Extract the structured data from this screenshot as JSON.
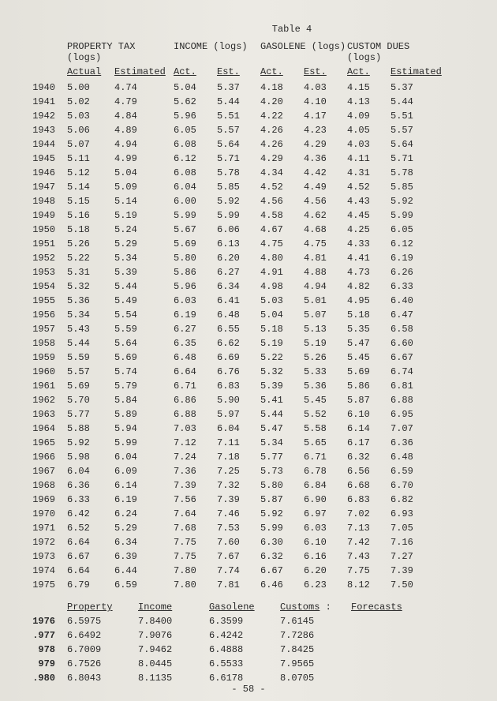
{
  "title": "Table 4",
  "groups": {
    "property": "PROPERTY TAX (logs)",
    "income": "INCOME (logs)",
    "gasolene": "GASOLENE (logs)",
    "customs": "CUSTOM DUES (logs)"
  },
  "subheaders": {
    "actual_full": "Actual",
    "estimated_full": "Estimated",
    "act": "Act.",
    "est": "Est."
  },
  "rows": [
    {
      "year": "1940",
      "c1": "5.00",
      "c2": "4.74",
      "c3": "5.04",
      "c4": "5.37",
      "c5": "4.18",
      "c6": "4.03",
      "c7": "4.15",
      "c8": "5.37"
    },
    {
      "year": "1941",
      "c1": "5.02",
      "c2": "4.79",
      "c3": "5.62",
      "c4": "5.44",
      "c5": "4.20",
      "c6": "4.10",
      "c7": "4.13",
      "c8": "5.44"
    },
    {
      "year": "1942",
      "c1": "5.03",
      "c2": "4.84",
      "c3": "5.96",
      "c4": "5.51",
      "c5": "4.22",
      "c6": "4.17",
      "c7": "4.09",
      "c8": "5.51"
    },
    {
      "year": "1943",
      "c1": "5.06",
      "c2": "4.89",
      "c3": "6.05",
      "c4": "5.57",
      "c5": "4.26",
      "c6": "4.23",
      "c7": "4.05",
      "c8": "5.57"
    },
    {
      "year": "1944",
      "c1": "5.07",
      "c2": "4.94",
      "c3": "6.08",
      "c4": "5.64",
      "c5": "4.26",
      "c6": "4.29",
      "c7": "4.03",
      "c8": "5.64"
    },
    {
      "year": "1945",
      "c1": "5.11",
      "c2": "4.99",
      "c3": "6.12",
      "c4": "5.71",
      "c5": "4.29",
      "c6": "4.36",
      "c7": "4.11",
      "c8": "5.71"
    },
    {
      "year": "1946",
      "c1": "5.12",
      "c2": "5.04",
      "c3": "6.08",
      "c4": "5.78",
      "c5": "4.34",
      "c6": "4.42",
      "c7": "4.31",
      "c8": "5.78"
    },
    {
      "year": "1947",
      "c1": "5.14",
      "c2": "5.09",
      "c3": "6.04",
      "c4": "5.85",
      "c5": "4.52",
      "c6": "4.49",
      "c7": "4.52",
      "c8": "5.85"
    },
    {
      "year": "1948",
      "c1": "5.15",
      "c2": "5.14",
      "c3": "6.00",
      "c4": "5.92",
      "c5": "4.56",
      "c6": "4.56",
      "c7": "4.43",
      "c8": "5.92"
    },
    {
      "year": "1949",
      "c1": "5.16",
      "c2": "5.19",
      "c3": "5.99",
      "c4": "5.99",
      "c5": "4.58",
      "c6": "4.62",
      "c7": "4.45",
      "c8": "5.99"
    },
    {
      "year": "1950",
      "c1": "5.18",
      "c2": "5.24",
      "c3": "5.67",
      "c4": "6.06",
      "c5": "4.67",
      "c6": "4.68",
      "c7": "4.25",
      "c8": "6.05"
    },
    {
      "year": "1951",
      "c1": "5.26",
      "c2": "5.29",
      "c3": "5.69",
      "c4": "6.13",
      "c5": "4.75",
      "c6": "4.75",
      "c7": "4.33",
      "c8": "6.12"
    },
    {
      "year": "1952",
      "c1": "5.22",
      "c2": "5.34",
      "c3": "5.80",
      "c4": "6.20",
      "c5": "4.80",
      "c6": "4.81",
      "c7": "4.41",
      "c8": "6.19"
    },
    {
      "year": "1953",
      "c1": "5.31",
      "c2": "5.39",
      "c3": "5.86",
      "c4": "6.27",
      "c5": "4.91",
      "c6": "4.88",
      "c7": "4.73",
      "c8": "6.26"
    },
    {
      "year": "1954",
      "c1": "5.32",
      "c2": "5.44",
      "c3": "5.96",
      "c4": "6.34",
      "c5": "4.98",
      "c6": "4.94",
      "c7": "4.82",
      "c8": "6.33"
    },
    {
      "year": "1955",
      "c1": "5.36",
      "c2": "5.49",
      "c3": "6.03",
      "c4": "6.41",
      "c5": "5.03",
      "c6": "5.01",
      "c7": "4.95",
      "c8": "6.40"
    },
    {
      "year": "1956",
      "c1": "5.34",
      "c2": "5.54",
      "c3": "6.19",
      "c4": "6.48",
      "c5": "5.04",
      "c6": "5.07",
      "c7": "5.18",
      "c8": "6.47"
    },
    {
      "year": "1957",
      "c1": "5.43",
      "c2": "5.59",
      "c3": "6.27",
      "c4": "6.55",
      "c5": "5.18",
      "c6": "5.13",
      "c7": "5.35",
      "c8": "6.58"
    },
    {
      "year": "1958",
      "c1": "5.44",
      "c2": "5.64",
      "c3": "6.35",
      "c4": "6.62",
      "c5": "5.19",
      "c6": "5.19",
      "c7": "5.47",
      "c8": "6.60"
    },
    {
      "year": "1959",
      "c1": "5.59",
      "c2": "5.69",
      "c3": "6.48",
      "c4": "6.69",
      "c5": "5.22",
      "c6": "5.26",
      "c7": "5.45",
      "c8": "6.67"
    },
    {
      "year": "1960",
      "c1": "5.57",
      "c2": "5.74",
      "c3": "6.64",
      "c4": "6.76",
      "c5": "5.32",
      "c6": "5.33",
      "c7": "5.69",
      "c8": "6.74"
    },
    {
      "year": "1961",
      "c1": "5.69",
      "c2": "5.79",
      "c3": "6.71",
      "c4": "6.83",
      "c5": "5.39",
      "c6": "5.36",
      "c7": "5.86",
      "c8": "6.81"
    },
    {
      "year": "1962",
      "c1": "5.70",
      "c2": "5.84",
      "c3": "6.86",
      "c4": "5.90",
      "c5": "5.41",
      "c6": "5.45",
      "c7": "5.87",
      "c8": "6.88"
    },
    {
      "year": "1963",
      "c1": "5.77",
      "c2": "5.89",
      "c3": "6.88",
      "c4": "5.97",
      "c5": "5.44",
      "c6": "5.52",
      "c7": "6.10",
      "c8": "6.95"
    },
    {
      "year": "1964",
      "c1": "5.88",
      "c2": "5.94",
      "c3": "7.03",
      "c4": "6.04",
      "c5": "5.47",
      "c6": "5.58",
      "c7": "6.14",
      "c8": "7.07"
    },
    {
      "year": "1965",
      "c1": "5.92",
      "c2": "5.99",
      "c3": "7.12",
      "c4": "7.11",
      "c5": "5.34",
      "c6": "5.65",
      "c7": "6.17",
      "c8": "6.36"
    },
    {
      "year": "1966",
      "c1": "5.98",
      "c2": "6.04",
      "c3": "7.24",
      "c4": "7.18",
      "c5": "5.77",
      "c6": "6.71",
      "c7": "6.32",
      "c8": "6.48"
    },
    {
      "year": "1967",
      "c1": "6.04",
      "c2": "6.09",
      "c3": "7.36",
      "c4": "7.25",
      "c5": "5.73",
      "c6": "6.78",
      "c7": "6.56",
      "c8": "6.59"
    },
    {
      "year": "1968",
      "c1": "6.36",
      "c2": "6.14",
      "c3": "7.39",
      "c4": "7.32",
      "c5": "5.80",
      "c6": "6.84",
      "c7": "6.68",
      "c8": "6.70"
    },
    {
      "year": "1969",
      "c1": "6.33",
      "c2": "6.19",
      "c3": "7.56",
      "c4": "7.39",
      "c5": "5.87",
      "c6": "6.90",
      "c7": "6.83",
      "c8": "6.82"
    },
    {
      "year": "1970",
      "c1": "6.42",
      "c2": "6.24",
      "c3": "7.64",
      "c4": "7.46",
      "c5": "5.92",
      "c6": "6.97",
      "c7": "7.02",
      "c8": "6.93"
    },
    {
      "year": "1971",
      "c1": "6.52",
      "c2": "5.29",
      "c3": "7.68",
      "c4": "7.53",
      "c5": "5.99",
      "c6": "6.03",
      "c7": "7.13",
      "c8": "7.05"
    },
    {
      "year": "1972",
      "c1": "6.64",
      "c2": "6.34",
      "c3": "7.75",
      "c4": "7.60",
      "c5": "6.30",
      "c6": "6.10",
      "c7": "7.42",
      "c8": "7.16"
    },
    {
      "year": "1973",
      "c1": "6.67",
      "c2": "6.39",
      "c3": "7.75",
      "c4": "7.67",
      "c5": "6.32",
      "c6": "6.16",
      "c7": "7.43",
      "c8": "7.27"
    },
    {
      "year": "1974",
      "c1": "6.64",
      "c2": "6.44",
      "c3": "7.80",
      "c4": "7.74",
      "c5": "6.67",
      "c6": "6.20",
      "c7": "7.75",
      "c8": "7.39"
    },
    {
      "year": "1975",
      "c1": "6.79",
      "c2": "6.59",
      "c3": "7.80",
      "c4": "7.81",
      "c5": "6.46",
      "c6": "6.23",
      "c7": "8.12",
      "c8": "7.50"
    }
  ],
  "forecast_headers": {
    "property": "Property",
    "income": "Income",
    "gasolene": "Gasolene",
    "customs": "Customs",
    "colon": ":",
    "forecasts": "Forecasts"
  },
  "forecasts": [
    {
      "year": "1976",
      "property": "6.5975",
      "income": "7.8400",
      "gasolene": "6.3599",
      "customs": "7.6145"
    },
    {
      "year": ".977",
      "property": "6.6492",
      "income": "7.9076",
      "gasolene": "6.4242",
      "customs": "7.7286"
    },
    {
      "year": "978",
      "property": "6.7009",
      "income": "7.9462",
      "gasolene": "6.4888",
      "customs": "7.8425"
    },
    {
      "year": "979",
      "property": "6.7526",
      "income": "8.0445",
      "gasolene": "6.5533",
      "customs": "7.9565"
    },
    {
      "year": ".980",
      "property": "6.8043",
      "income": "8.1135",
      "gasolene": "6.6178",
      "customs": "8.0705"
    }
  ],
  "page_number": "- 58 -"
}
